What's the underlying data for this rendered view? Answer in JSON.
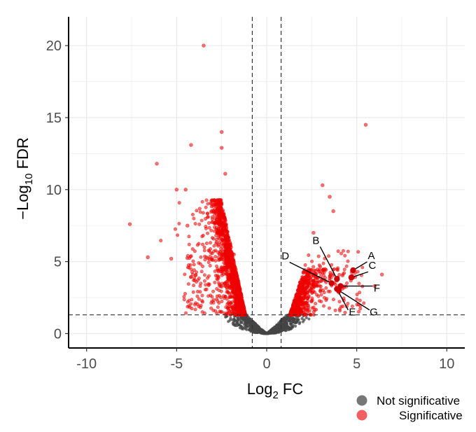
{
  "chart_data": {
    "type": "scatter",
    "title": "",
    "xlabel": {
      "main": "Log",
      "sub": "2",
      "suffix": " FC"
    },
    "ylabel": {
      "prefix": "−Log",
      "sub": "10",
      "suffix": " FDR"
    },
    "xlim": [
      -11,
      11
    ],
    "ylim": [
      -1,
      22
    ],
    "xticks": [
      -10,
      -5,
      0,
      5,
      10
    ],
    "xtick_labels": [
      "-10",
      "-5",
      "0",
      "5",
      "10"
    ],
    "yticks": [
      0,
      5,
      10,
      15,
      20
    ],
    "ytick_labels": [
      "0",
      "5",
      "10",
      "15",
      "20"
    ],
    "grid": true,
    "thresholds": {
      "log2fc": [
        -0.8,
        0.8
      ],
      "neg_log10_fdr": 1.3
    },
    "legend_position": "bottom-right",
    "colors": {
      "not_significative": "#444444",
      "significative": "#ee0000",
      "highlight": "#cc0000",
      "grid": "#ebebeb",
      "threshold_line": "#333333"
    },
    "series": [
      {
        "name": "Not significative",
        "color": "#444444"
      },
      {
        "name": "Significative",
        "color": "#ee0000"
      }
    ],
    "outliers": [
      [
        -3.5,
        20.0
      ],
      [
        5.5,
        14.5
      ],
      [
        -2.5,
        14.0
      ],
      [
        -4.2,
        13.1
      ],
      [
        -2.5,
        12.9
      ],
      [
        -6.1,
        11.8
      ],
      [
        -2.3,
        11.1
      ],
      [
        3.1,
        10.3
      ],
      [
        -5.0,
        10.0
      ],
      [
        -4.5,
        10.0
      ],
      [
        3.5,
        9.5
      ],
      [
        -7.6,
        7.6
      ],
      [
        -6.6,
        5.3
      ],
      [
        -5.3,
        5.2
      ],
      [
        3.7,
        8.5
      ],
      [
        2.6,
        7.0
      ],
      [
        6.4,
        4.1
      ],
      [
        6.0,
        3.3
      ],
      [
        -4.4,
        7.5
      ]
    ],
    "highlighted_genes": [
      {
        "label": "A",
        "x": 4.8,
        "y": 4.4
      },
      {
        "label": "B",
        "x": 3.9,
        "y": 3.8
      },
      {
        "label": "C",
        "x": 4.7,
        "y": 3.9
      },
      {
        "label": "D",
        "x": 3.6,
        "y": 3.5
      },
      {
        "label": "E",
        "x": 3.9,
        "y": 3.1
      },
      {
        "label": "F",
        "x": 4.1,
        "y": 3.3
      },
      {
        "label": "G",
        "x": 4.0,
        "y": 3.0
      }
    ]
  },
  "legend": {
    "items": [
      {
        "label": "Not significative",
        "color": "#777777"
      },
      {
        "label": "Significative",
        "color": "#f06060"
      }
    ]
  }
}
